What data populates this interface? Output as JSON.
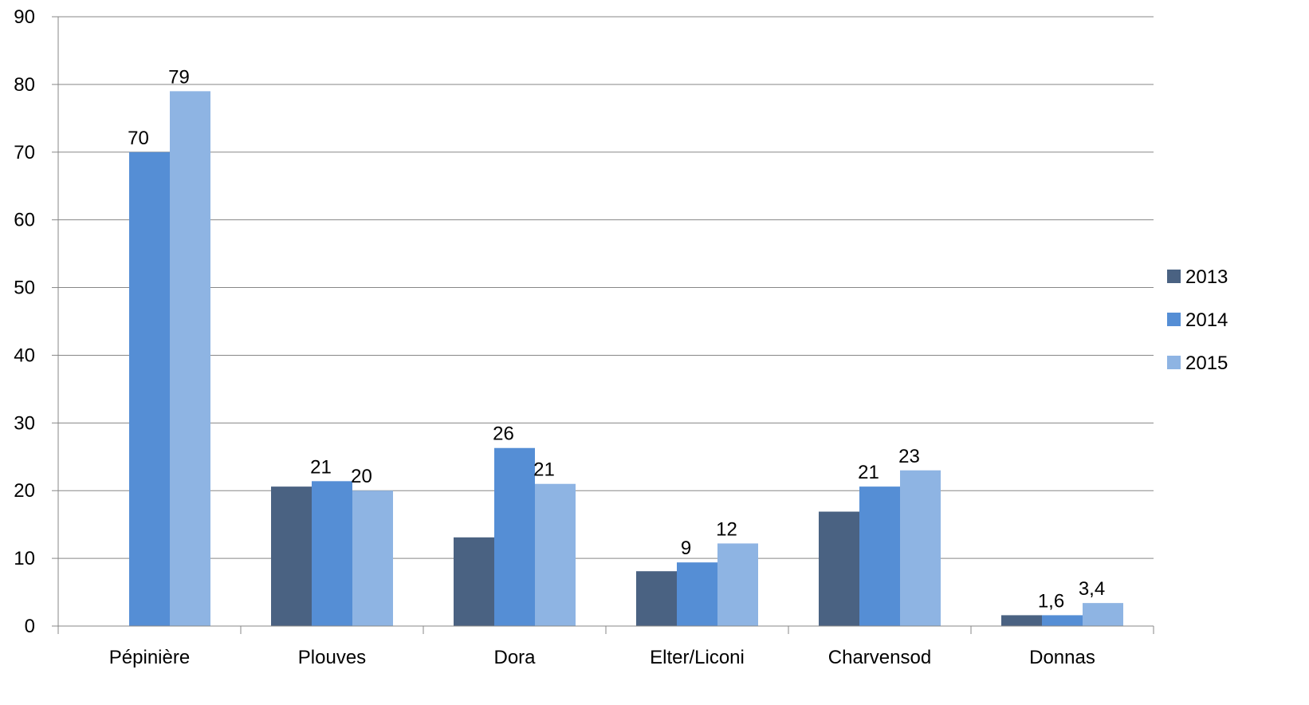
{
  "chart_data": {
    "type": "bar",
    "title": "",
    "xlabel": "",
    "ylabel": "",
    "categories": [
      "Pépinière",
      "Plouves",
      "Dora",
      "Elter/Liconi",
      "Charvensod",
      "Donnas"
    ],
    "series": [
      {
        "name": "2013",
        "color": "#4A6282",
        "values": [
          null,
          20.6,
          13.1,
          8.1,
          16.9,
          1.6
        ],
        "labels": [
          "",
          "",
          "",
          "",
          "",
          ""
        ]
      },
      {
        "name": "2014",
        "color": "#558ED5",
        "values": [
          70,
          21.4,
          26.3,
          9.4,
          20.6,
          1.6
        ],
        "labels": [
          "70",
          "21",
          "26",
          "9",
          "21",
          "1,6"
        ]
      },
      {
        "name": "2015",
        "color": "#8EB4E3",
        "values": [
          79,
          20,
          21,
          12.2,
          23,
          3.4
        ],
        "labels": [
          "79",
          "20",
          "21",
          "12",
          "23",
          "3,4"
        ]
      }
    ],
    "ylim": [
      0,
      90
    ],
    "yticks": [
      "0",
      "10",
      "20",
      "30",
      "40",
      "50",
      "60",
      "70",
      "80",
      "90"
    ],
    "grid": true,
    "legend": "right",
    "gridline_color": "#878787"
  }
}
